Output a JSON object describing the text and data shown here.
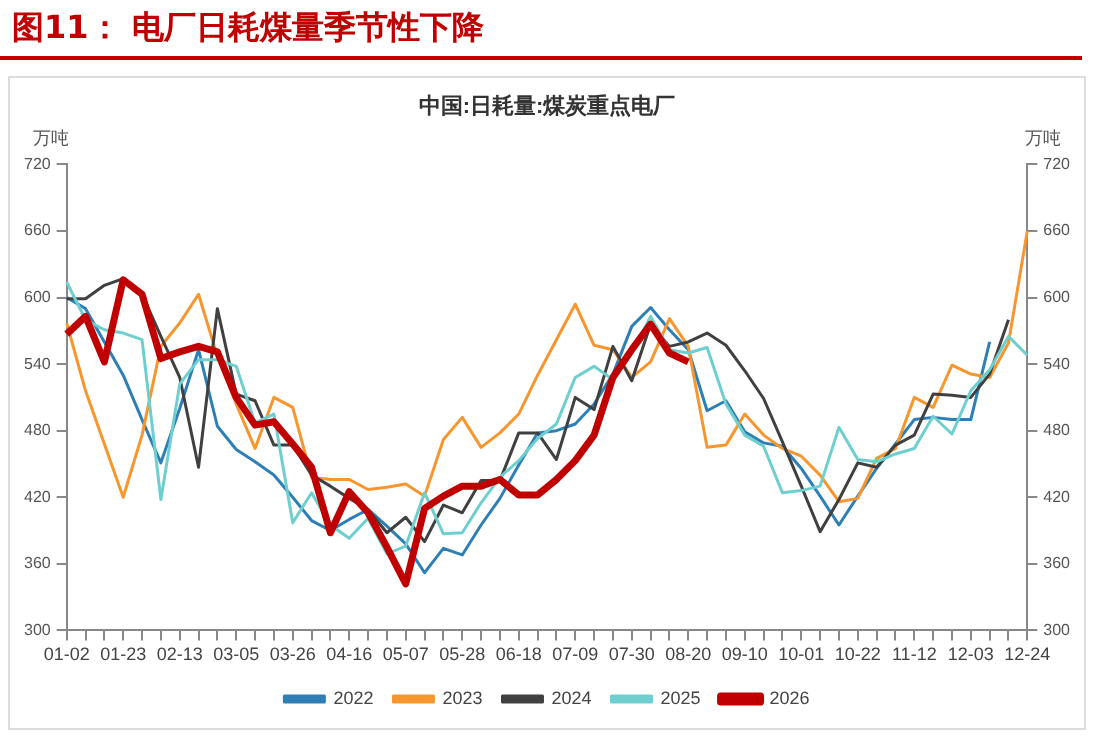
{
  "chart_data": {
    "type": "line",
    "title": "图11： 电厂日耗煤量季节性下降",
    "subtitle": "中国:日耗量:煤炭重点电厂",
    "ylabel": "万吨",
    "y2label": "万吨",
    "categories": [
      "01-02",
      null,
      null,
      "01-23",
      null,
      null,
      "02-13",
      null,
      null,
      "03-05",
      null,
      null,
      "03-26",
      null,
      null,
      "04-16",
      null,
      null,
      "05-07",
      null,
      null,
      "05-28",
      null,
      null,
      "06-18",
      null,
      null,
      "07-09",
      null,
      null,
      "07-30",
      null,
      null,
      "08-20",
      null,
      null,
      "09-10",
      null,
      null,
      "10-01",
      null,
      null,
      "10-22",
      null,
      null,
      "11-12",
      null,
      null,
      "12-03",
      null,
      null,
      "12-24"
    ],
    "ylim": [
      300,
      720
    ],
    "yticks": [
      300,
      360,
      420,
      480,
      540,
      600,
      660,
      720
    ],
    "y2lim": [
      300,
      720
    ],
    "y2ticks": [
      300,
      360,
      420,
      480,
      540,
      600,
      660,
      720
    ],
    "grid": false,
    "legend": "bottom",
    "marker": "none",
    "line_style": "solid",
    "series": [
      {
        "name": "2022",
        "color": "#2e7fb5",
        "values": [
          600,
          590,
          560,
          530,
          490,
          451,
          500,
          553,
          484,
          463,
          452,
          440,
          420,
          399,
          390,
          400,
          409,
          394,
          378,
          352,
          374,
          368,
          395,
          419,
          449,
          478,
          480,
          486,
          504,
          531,
          574,
          591,
          571,
          553,
          498,
          507,
          479,
          469,
          466,
          446,
          421,
          395,
          421,
          446,
          468,
          490,
          492,
          490,
          490,
          560,
          null,
          null
        ]
      },
      {
        "name": "2023",
        "color": "#f7962f",
        "values": [
          577,
          516,
          468,
          420,
          476,
          556,
          577,
          603,
          547,
          504,
          464,
          510,
          501,
          438,
          436,
          436,
          427,
          429,
          432,
          421,
          472,
          492,
          465,
          478,
          495,
          530,
          562,
          594,
          557,
          553,
          528,
          542,
          581,
          556,
          465,
          467,
          495,
          476,
          464,
          457,
          440,
          416,
          419,
          455,
          464,
          510,
          501,
          539,
          531,
          528,
          559,
          660
        ]
      },
      {
        "name": "2024",
        "color": "#404040",
        "values": [
          599,
          599,
          611,
          617,
          603,
          565,
          528,
          447,
          590,
          513,
          507,
          467,
          467,
          440,
          430,
          419,
          409,
          388,
          402,
          380,
          413,
          406,
          435,
          435,
          478,
          478,
          454,
          510,
          499,
          556,
          525,
          576,
          556,
          560,
          568,
          557,
          534,
          509,
          470,
          430,
          389,
          418,
          451,
          447,
          467,
          476,
          513,
          512,
          510,
          531,
          580,
          null
        ]
      },
      {
        "name": "2025",
        "color": "#6fcfcf",
        "values": [
          614,
          580,
          571,
          568,
          562,
          418,
          522,
          544,
          544,
          538,
          487,
          495,
          397,
          424,
          395,
          383,
          401,
          369,
          376,
          424,
          387,
          388,
          415,
          438,
          453,
          473,
          486,
          528,
          538,
          526,
          550,
          583,
          553,
          550,
          555,
          504,
          476,
          466,
          424,
          426,
          430,
          483,
          454,
          452,
          459,
          464,
          493,
          477,
          516,
          535,
          565,
          548
        ]
      },
      {
        "name": "2026",
        "color": "#c00000",
        "values": [
          567,
          583,
          542,
          616,
          603,
          545,
          551,
          556,
          551,
          510,
          485,
          488,
          468,
          447,
          388,
          425,
          406,
          375,
          342,
          410,
          421,
          430,
          430,
          436,
          422,
          422,
          436,
          453,
          476,
          528,
          553,
          576,
          550,
          542,
          null,
          null,
          null,
          null,
          null,
          null,
          null,
          null,
          null,
          null,
          null,
          null,
          null,
          null,
          null,
          null,
          null,
          null
        ]
      }
    ]
  }
}
